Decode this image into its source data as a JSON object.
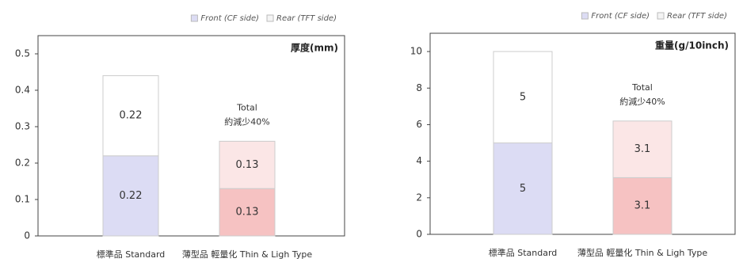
{
  "chart_data": [
    {
      "type": "stacked_bar",
      "title": "厚度(mm)",
      "categories": [
        "標準品 Standard",
        "薄型品 輕量化 Thin & Ligh Type"
      ],
      "series": [
        {
          "name": "Front (CF side)",
          "color": "#dcdcf4",
          "colors": [
            "#dcdcf4",
            "#f6c2c2"
          ],
          "values": [
            0.22,
            0.13
          ]
        },
        {
          "name": "Rear (TFT side)",
          "color": "#f4f4f4",
          "colors": [
            "#ffffff",
            "#fbe6e6"
          ],
          "values": [
            0.22,
            0.13
          ]
        }
      ],
      "annotation": [
        "Total",
        "約減少40%"
      ],
      "ylim": [
        0,
        0.55
      ],
      "yticks": [
        0,
        0.1,
        0.2,
        0.3,
        0.4,
        0.5
      ]
    },
    {
      "type": "stacked_bar",
      "title": "重量(g/10inch)",
      "categories": [
        "標準品 Standard",
        "薄型品 輕量化 Thin & Ligh Type"
      ],
      "series": [
        {
          "name": "Front (CF side)",
          "color": "#dcdcf4",
          "colors": [
            "#dcdcf4",
            "#f6c2c2"
          ],
          "values": [
            5,
            3.1
          ]
        },
        {
          "name": "Rear (TFT side)",
          "color": "#f4f4f4",
          "colors": [
            "#ffffff",
            "#fbe6e6"
          ],
          "values": [
            5,
            3.1
          ]
        }
      ],
      "annotation": [
        "Total",
        "約減少40%"
      ],
      "ylim": [
        0,
        11
      ],
      "yticks": [
        0,
        2,
        4,
        6,
        8,
        10
      ]
    }
  ]
}
